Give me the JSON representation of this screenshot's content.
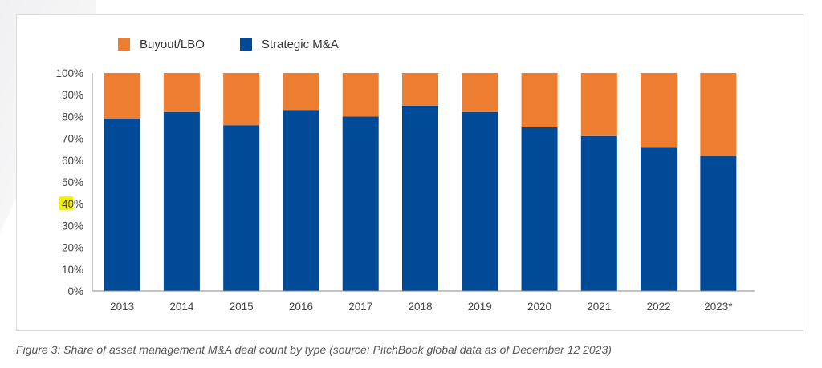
{
  "chart_data": {
    "type": "bar",
    "stacked": true,
    "percent_stacked": true,
    "categories": [
      "2013",
      "2014",
      "2015",
      "2016",
      "2017",
      "2018",
      "2019",
      "2020",
      "2021",
      "2022",
      "2023*"
    ],
    "series": [
      {
        "name": "Strategic M&A",
        "color": "#004a98",
        "values": [
          79,
          82,
          76,
          83,
          80,
          85,
          82,
          75,
          71,
          66,
          62
        ]
      },
      {
        "name": "Buyout/LBO",
        "color": "#ed7d31",
        "values": [
          21,
          18,
          24,
          17,
          20,
          15,
          18,
          25,
          29,
          34,
          38
        ]
      }
    ],
    "legend_order": [
      "Buyout/LBO",
      "Strategic M&A"
    ],
    "yticks": [
      "0%",
      "10%",
      "20%",
      "30%",
      "40%",
      "50%",
      "60%",
      "70%",
      "80%",
      "90%",
      "100%"
    ],
    "highlighted_ytick": "40%",
    "highlight_color": "#f5f000",
    "ylim": [
      0,
      100
    ],
    "legend_position": "top-left",
    "grid": false
  },
  "caption": "Figure 3: Share of asset management M&A deal count by type (source: PitchBook global data as of December 12 2023)"
}
